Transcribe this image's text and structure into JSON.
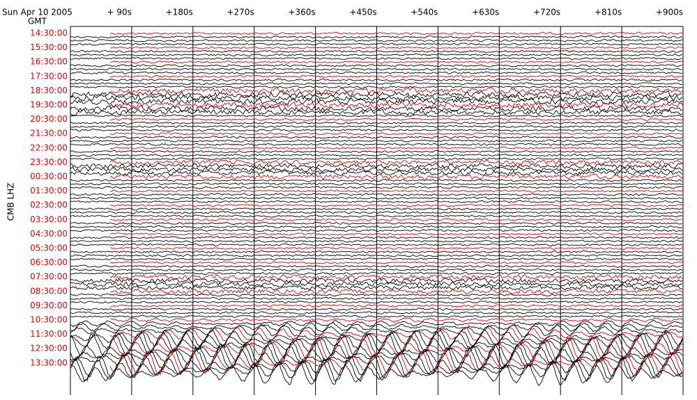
{
  "chart_data": {
    "type": "helicorder",
    "title": "Sun Apr 10 2005",
    "subtitle": "GMT",
    "ylabel": "CMB LHZ",
    "categories": [
      "14:30:00",
      "15:30:00",
      "16:30:00",
      "17:30:00",
      "18:30:00",
      "19:30:00",
      "20:30:00",
      "21:30:00",
      "22:30:00",
      "23:30:00",
      "00:30:00",
      "01:30:00",
      "02:30:00",
      "03:30:00",
      "04:30:00",
      "05:30:00",
      "06:30:00",
      "07:30:00",
      "08:30:00",
      "09:30:00",
      "10:30:00",
      "11:30:00",
      "12:30:00",
      "13:30:00"
    ],
    "xlim": [
      0,
      900
    ],
    "xticks": [
      {
        "value": 90,
        "label": "+ 90s"
      },
      {
        "value": 180,
        "label": "+180s"
      },
      {
        "value": 270,
        "label": "+270s"
      },
      {
        "value": 360,
        "label": "+360s"
      },
      {
        "value": 450,
        "label": "+450s"
      },
      {
        "value": 540,
        "label": "+540s"
      },
      {
        "value": 630,
        "label": "+630s"
      },
      {
        "value": 720,
        "label": "+720s"
      },
      {
        "value": 810,
        "label": "+810s"
      },
      {
        "value": 900,
        "label": "+900s"
      }
    ],
    "label_color": "#e00000",
    "hour_trace_color": "#e00000",
    "trace_color": "#000000",
    "grid": true
  }
}
